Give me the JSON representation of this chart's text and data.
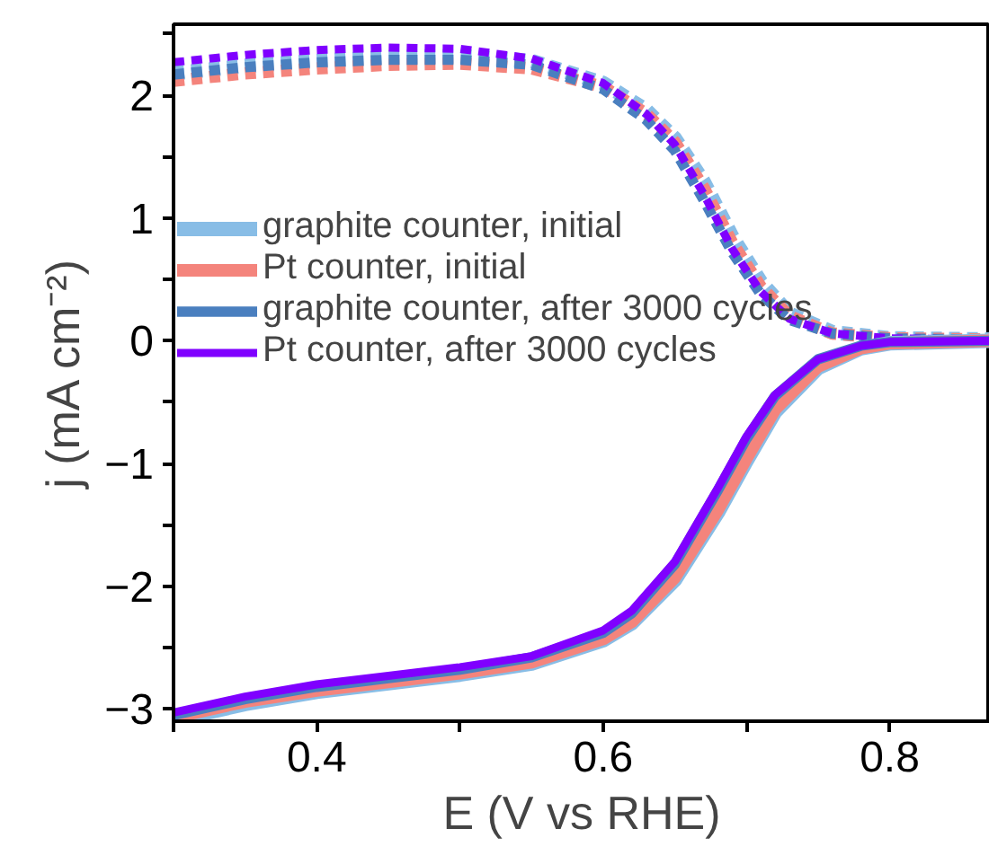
{
  "chart_data": {
    "type": "line",
    "xlabel": "E (V vs RHE)",
    "ylabel": "j (mA cm⁻²)",
    "xlim": [
      0.3,
      0.87
    ],
    "ylim": [
      -3.1,
      2.58
    ],
    "xticks": [
      {
        "value": 0.3,
        "label": null
      },
      0.4,
      {
        "value": 0.5,
        "label": null
      },
      0.6,
      {
        "value": 0.7,
        "label": null
      },
      0.8
    ],
    "yticks": [
      -3,
      {
        "value": -2.5,
        "label": null
      },
      -2,
      {
        "value": -1.5,
        "label": null
      },
      -1,
      {
        "value": -0.5,
        "label": null
      },
      0,
      {
        "value": 0.5,
        "label": null
      },
      1,
      {
        "value": 1.5,
        "label": null
      },
      2,
      {
        "value": 2.5,
        "label": null
      }
    ],
    "grid": false,
    "legend": "left",
    "series": [
      {
        "color": "#88bde6",
        "line_style": "dashed",
        "x": [
          0.3,
          0.35,
          0.4,
          0.45,
          0.5,
          0.55,
          0.6,
          0.63,
          0.65,
          0.67,
          0.69,
          0.71,
          0.73,
          0.76,
          0.8,
          0.87
        ],
        "values": [
          2.18,
          2.24,
          2.28,
          2.31,
          2.32,
          2.28,
          2.1,
          1.88,
          1.65,
          1.3,
          0.85,
          0.48,
          0.22,
          0.07,
          0.02,
          0.01
        ]
      },
      {
        "color": "#f4847c",
        "line_style": "dashed",
        "x": [
          0.3,
          0.35,
          0.4,
          0.45,
          0.5,
          0.55,
          0.6,
          0.63,
          0.65,
          0.67,
          0.69,
          0.71,
          0.73,
          0.76,
          0.8,
          0.87
        ],
        "values": [
          2.12,
          2.18,
          2.22,
          2.25,
          2.26,
          2.22,
          2.07,
          1.85,
          1.62,
          1.25,
          0.8,
          0.44,
          0.2,
          0.06,
          0.02,
          0.01
        ]
      },
      {
        "color": "#4a7fbf",
        "line_style": "dashed",
        "x": [
          0.3,
          0.35,
          0.4,
          0.45,
          0.5,
          0.55,
          0.6,
          0.63,
          0.65,
          0.67,
          0.69,
          0.71,
          0.73,
          0.76,
          0.8,
          0.87
        ],
        "values": [
          2.17,
          2.23,
          2.27,
          2.29,
          2.29,
          2.25,
          2.05,
          1.8,
          1.55,
          1.15,
          0.72,
          0.38,
          0.17,
          0.06,
          0.02,
          0.01
        ]
      },
      {
        "color": "#7f00ff",
        "line_style": "dashed",
        "x": [
          0.3,
          0.35,
          0.4,
          0.45,
          0.5,
          0.55,
          0.6,
          0.63,
          0.65,
          0.67,
          0.69,
          0.71,
          0.73,
          0.76,
          0.8,
          0.87
        ],
        "values": [
          2.27,
          2.33,
          2.37,
          2.39,
          2.38,
          2.3,
          2.1,
          1.85,
          1.6,
          1.2,
          0.75,
          0.4,
          0.18,
          0.06,
          0.02,
          0.01
        ]
      },
      {
        "name": "graphite counter, initial",
        "color": "#88bde6",
        "line_style": "solid",
        "x": [
          0.3,
          0.35,
          0.4,
          0.45,
          0.5,
          0.55,
          0.6,
          0.62,
          0.65,
          0.68,
          0.7,
          0.72,
          0.75,
          0.78,
          0.8,
          0.87
        ],
        "values": [
          -3.09,
          -2.96,
          -2.86,
          -2.79,
          -2.72,
          -2.63,
          -2.44,
          -2.3,
          -1.95,
          -1.4,
          -0.98,
          -0.58,
          -0.22,
          -0.06,
          -0.02,
          0
        ]
      },
      {
        "name": "Pt counter, initial",
        "color": "#f4847c",
        "line_style": "solid",
        "x": [
          0.3,
          0.35,
          0.4,
          0.45,
          0.5,
          0.55,
          0.6,
          0.62,
          0.65,
          0.68,
          0.7,
          0.72,
          0.75,
          0.78,
          0.8,
          0.87
        ],
        "values": [
          -3.07,
          -2.94,
          -2.85,
          -2.78,
          -2.71,
          -2.62,
          -2.43,
          -2.29,
          -1.93,
          -1.38,
          -0.96,
          -0.56,
          -0.21,
          -0.06,
          -0.02,
          0
        ]
      },
      {
        "name": "graphite counter, after 3000 cycles",
        "color": "#4a7fbf",
        "line_style": "solid",
        "x": [
          0.3,
          0.35,
          0.4,
          0.45,
          0.5,
          0.55,
          0.6,
          0.62,
          0.65,
          0.68,
          0.7,
          0.72,
          0.75,
          0.78,
          0.8,
          0.87
        ],
        "values": [
          -3.05,
          -2.92,
          -2.82,
          -2.75,
          -2.68,
          -2.58,
          -2.38,
          -2.22,
          -1.82,
          -1.22,
          -0.8,
          -0.45,
          -0.15,
          -0.04,
          -0.01,
          0
        ]
      },
      {
        "name": "Pt counter, after 3000 cycles",
        "color": "#7f00ff",
        "line_style": "solid",
        "x": [
          0.3,
          0.35,
          0.4,
          0.45,
          0.5,
          0.55,
          0.6,
          0.62,
          0.65,
          0.68,
          0.7,
          0.72,
          0.75,
          0.78,
          0.8,
          0.87
        ],
        "values": [
          -3.03,
          -2.9,
          -2.8,
          -2.73,
          -2.66,
          -2.57,
          -2.36,
          -2.2,
          -1.8,
          -1.2,
          -0.78,
          -0.44,
          -0.15,
          -0.04,
          -0.01,
          0
        ]
      }
    ]
  }
}
